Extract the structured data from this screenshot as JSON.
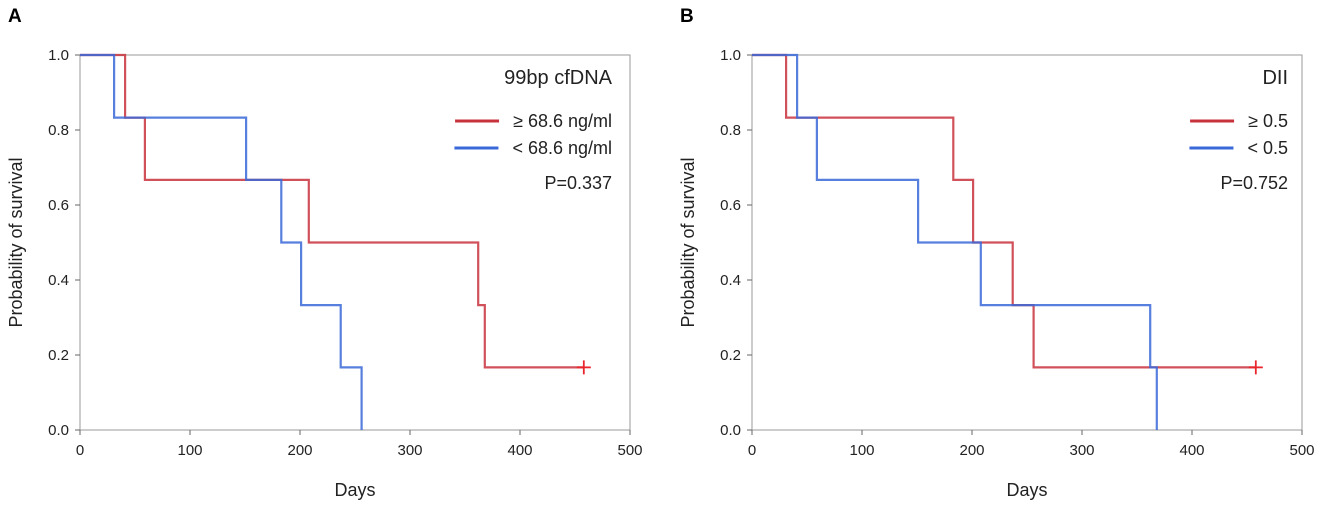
{
  "chart_data": [
    {
      "type": "line",
      "subtype": "kaplan-meier",
      "panel_label": "A",
      "title": "99bp cfDNA",
      "xlabel": "Days",
      "ylabel": "Probability of survival",
      "xlim": [
        0,
        500
      ],
      "ylim": [
        0,
        1
      ],
      "x_ticks": [
        0,
        100,
        200,
        300,
        400,
        500
      ],
      "y_ticks": [
        0.0,
        0.2,
        0.4,
        0.6,
        0.8,
        1.0
      ],
      "x_tick_labels": [
        "0",
        "100",
        "200",
        "300",
        "400",
        "500"
      ],
      "y_tick_labels": [
        "0.0",
        "0.2",
        "0.4",
        "0.6",
        "0.8",
        "1.0"
      ],
      "p_value": "P=0.337",
      "legend_position": "top-right",
      "series": [
        {
          "name": "≥ 68.6 ng/ml",
          "color": "#c8323c",
          "times": [
            0,
            41,
            59,
            208,
            362,
            368
          ],
          "survival": [
            1.0,
            0.833,
            0.667,
            0.5,
            0.333,
            0.167
          ],
          "end_x": 458,
          "censored": [
            {
              "x": 458,
              "y": 0.167
            }
          ]
        },
        {
          "name": "< 68.6 ng/ml",
          "color": "#3a68d8",
          "times": [
            0,
            31,
            151,
            183,
            201,
            237,
            256
          ],
          "survival": [
            1.0,
            0.833,
            0.667,
            0.5,
            0.333,
            0.167,
            0.0
          ],
          "end_x": 256,
          "censored": []
        }
      ]
    },
    {
      "type": "line",
      "subtype": "kaplan-meier",
      "panel_label": "B",
      "title": "DII",
      "xlabel": "Days",
      "ylabel": "Probability of survival",
      "xlim": [
        0,
        500
      ],
      "ylim": [
        0,
        1
      ],
      "x_ticks": [
        0,
        100,
        200,
        300,
        400,
        500
      ],
      "y_ticks": [
        0.0,
        0.2,
        0.4,
        0.6,
        0.8,
        1.0
      ],
      "x_tick_labels": [
        "0",
        "100",
        "200",
        "300",
        "400",
        "500"
      ],
      "y_tick_labels": [
        "0.0",
        "0.2",
        "0.4",
        "0.6",
        "0.8",
        "1.0"
      ],
      "p_value": "P=0.752",
      "legend_position": "top-right",
      "series": [
        {
          "name": "≥ 0.5",
          "color": "#c8323c",
          "times": [
            0,
            31,
            183,
            201,
            237,
            256
          ],
          "survival": [
            1.0,
            0.833,
            0.667,
            0.5,
            0.333,
            0.167
          ],
          "end_x": 458,
          "censored": [
            {
              "x": 458,
              "y": 0.167
            }
          ]
        },
        {
          "name": "< 0.5",
          "color": "#3a68d8",
          "times": [
            0,
            41,
            59,
            151,
            208,
            362,
            368
          ],
          "survival": [
            1.0,
            0.833,
            0.667,
            0.5,
            0.333,
            0.167,
            0.0
          ],
          "end_x": 368,
          "censored": []
        }
      ]
    }
  ]
}
